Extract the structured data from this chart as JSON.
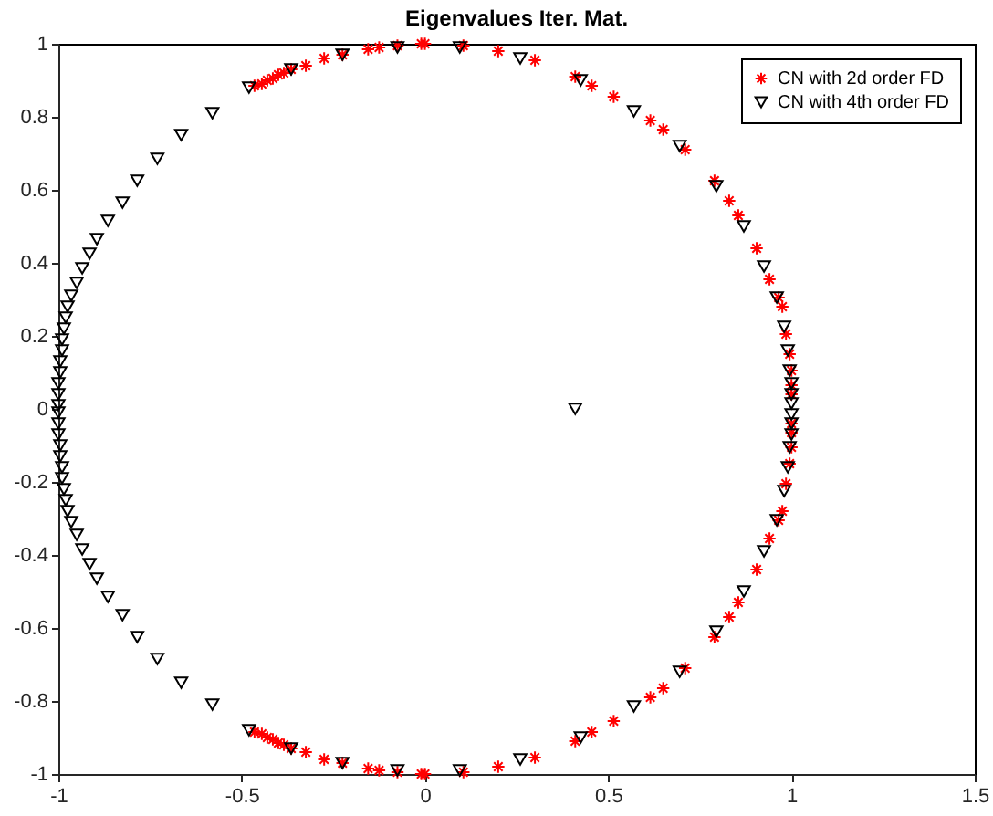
{
  "chart_data": {
    "type": "scatter",
    "title": "Eigenvalues Iter. Mat.",
    "xlim": [
      -1,
      1.5
    ],
    "xticks": [
      -1,
      -0.5,
      0,
      0.5,
      1,
      1.5
    ],
    "ylim": [
      -1,
      1
    ],
    "yticks": [
      -1,
      -0.8,
      -0.6,
      -0.4,
      -0.2,
      0,
      0.2,
      0.4,
      0.6,
      0.8,
      1
    ],
    "grid": false,
    "legend": "top right",
    "series": [
      {
        "name": "CN with 2d order FD",
        "color": "#ff0000",
        "marker": "cross",
        "x": [
          -0.465,
          -0.445,
          -0.43,
          -0.415,
          -0.4,
          -0.385,
          -0.365,
          -0.325,
          -0.275,
          -0.225,
          -0.155,
          -0.125,
          -0.075,
          -0.01,
          0.0,
          0.105,
          0.2,
          0.3,
          0.41,
          0.455,
          0.515,
          0.615,
          0.65,
          0.71,
          0.79,
          0.83,
          0.855,
          0.905,
          0.94,
          0.965,
          0.975,
          0.985,
          0.995,
          1.0,
          1.0,
          1.0,
          -0.465,
          -0.445,
          -0.43,
          -0.415,
          -0.4,
          -0.385,
          -0.365,
          -0.325,
          -0.275,
          -0.225,
          -0.155,
          -0.125,
          -0.075,
          -0.01,
          0.0,
          0.105,
          0.2,
          0.3,
          0.41,
          0.455,
          0.515,
          0.615,
          0.65,
          0.71,
          0.79,
          0.83,
          0.855,
          0.905,
          0.94,
          0.965,
          0.975,
          0.985,
          0.995,
          1.0,
          1.0,
          1.0
        ],
        "values": [
          0.885,
          0.89,
          0.9,
          0.905,
          0.915,
          0.92,
          0.93,
          0.94,
          0.96,
          0.97,
          0.985,
          0.99,
          0.995,
          1.0,
          1.0,
          0.995,
          0.98,
          0.955,
          0.91,
          0.885,
          0.855,
          0.79,
          0.765,
          0.71,
          0.625,
          0.57,
          0.53,
          0.44,
          0.355,
          0.305,
          0.28,
          0.205,
          0.15,
          0.105,
          0.065,
          0.04,
          -0.885,
          -0.89,
          -0.9,
          -0.905,
          -0.915,
          -0.92,
          -0.93,
          -0.94,
          -0.96,
          -0.97,
          -0.985,
          -0.99,
          -0.995,
          -1.0,
          -1.0,
          -0.995,
          -0.98,
          -0.955,
          -0.91,
          -0.885,
          -0.855,
          -0.79,
          -0.765,
          -0.71,
          -0.625,
          -0.57,
          -0.53,
          -0.44,
          -0.355,
          -0.305,
          -0.28,
          -0.205,
          -0.15,
          -0.105,
          -0.065,
          -0.04
        ]
      },
      {
        "name": "CN with 4th order FD",
        "color": "#000000",
        "marker": "triangle",
        "x": [
          0.57,
          0.425,
          0.26,
          0.095,
          -0.075,
          -0.225,
          -0.365,
          -0.48,
          -0.58,
          -0.665,
          -0.73,
          -0.785,
          -0.825,
          -0.865,
          -0.895,
          -0.915,
          -0.935,
          -0.95,
          -0.965,
          -0.975,
          -0.98,
          -0.985,
          -0.99,
          -0.99,
          -0.995,
          -0.995,
          -1,
          -1,
          -1,
          0.695,
          0.795,
          0.87,
          0.925,
          0.96,
          0.98,
          0.99,
          0.995,
          1,
          1,
          1,
          0.57,
          0.425,
          0.26,
          0.095,
          -0.075,
          -0.225,
          -0.365,
          -0.48,
          -0.58,
          -0.665,
          -0.73,
          -0.785,
          -0.825,
          -0.865,
          -0.895,
          -0.915,
          -0.935,
          -0.95,
          -0.965,
          -0.975,
          -0.98,
          -0.985,
          -0.99,
          -0.99,
          -0.995,
          -0.995,
          -1,
          -1,
          -1,
          0.695,
          0.795,
          0.87,
          0.925,
          0.96,
          0.98,
          0.99,
          0.995,
          1,
          1,
          1,
          0.41
        ],
        "values": [
          0.815,
          0.9,
          0.96,
          0.99,
          0.99,
          0.97,
          0.93,
          0.88,
          0.81,
          0.75,
          0.685,
          0.625,
          0.565,
          0.515,
          0.465,
          0.425,
          0.385,
          0.345,
          0.31,
          0.28,
          0.25,
          0.22,
          0.19,
          0.16,
          0.13,
          0.1,
          0.07,
          0.04,
          0.01,
          0.72,
          0.61,
          0.5,
          0.39,
          0.305,
          0.225,
          0.16,
          0.105,
          0.07,
          0.04,
          0.015,
          -0.815,
          -0.9,
          -0.96,
          -0.99,
          -0.99,
          -0.97,
          -0.93,
          -0.88,
          -0.81,
          -0.75,
          -0.685,
          -0.625,
          -0.565,
          -0.515,
          -0.465,
          -0.425,
          -0.385,
          -0.345,
          -0.31,
          -0.28,
          -0.25,
          -0.22,
          -0.19,
          -0.16,
          -0.13,
          -0.1,
          -0.07,
          -0.04,
          -0.01,
          -0.72,
          -0.61,
          -0.5,
          -0.39,
          -0.305,
          -0.225,
          -0.16,
          -0.105,
          -0.07,
          -0.04,
          -0.015,
          0
        ]
      }
    ]
  }
}
